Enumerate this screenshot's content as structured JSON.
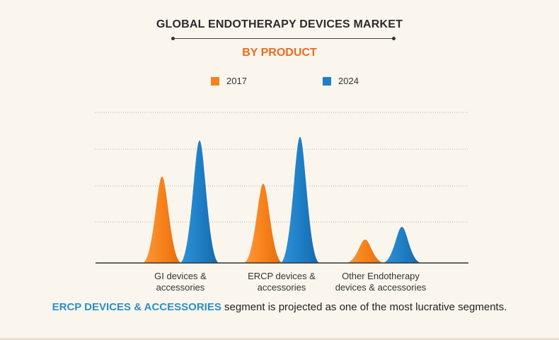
{
  "chart_data": {
    "type": "area",
    "title": "GLOBAL ENDOTHERAPY DEVICES MARKET",
    "subtitle": "BY PRODUCT",
    "categories": [
      "GI devices & accessories",
      "ERCP devices & accessories",
      "Other Endotherapy devices & accessories"
    ],
    "category_lines": [
      [
        "GI devices &",
        "accessories"
      ],
      [
        "ERCP devices &",
        "accessories"
      ],
      [
        "Other Endotherapy",
        "devices & accessories"
      ]
    ],
    "series": [
      {
        "name": "2017",
        "values": [
          2.4,
          2.2,
          0.65
        ]
      },
      {
        "name": "2024",
        "values": [
          3.4,
          3.5,
          1.0
        ]
      }
    ],
    "ylim": [
      0,
      4.2
    ],
    "grid": true,
    "legend_position": "top-center",
    "xlabel": "",
    "ylabel": ""
  },
  "colors": {
    "series_2017": "#f7821b",
    "series_2024": "#1f7fc6",
    "subtitle": "#f06a1c",
    "highlight": "#2b8fc4"
  },
  "footer": {
    "highlight": "ERCP DEVICES & ACCESSORIES",
    "text": " segment is projected as one of the most lucrative segments."
  }
}
